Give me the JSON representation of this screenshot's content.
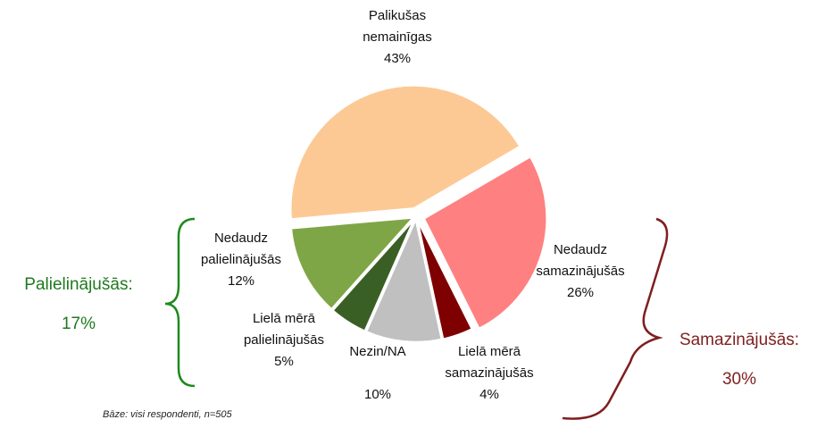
{
  "chart_data": {
    "type": "pie",
    "categories": [
      "Palikušas nemainīgas",
      "Nedaudz samazinājušās",
      "Lielā mērā samazinājušās",
      "Nezin/NA",
      "Lielā mērā palielinājušās",
      "Nedaudz palielinājušās"
    ],
    "values": [
      43,
      26,
      4,
      10,
      5,
      12
    ],
    "value_labels": [
      "43%",
      "26%",
      "4%",
      "10%",
      "5%",
      "12%"
    ],
    "colors": [
      "#fcc995",
      "#ff8080",
      "#7f0000",
      "#c0c0c0",
      "#3a5f24",
      "#7fa646"
    ],
    "groups": [
      {
        "name": "Palielinājušās:",
        "value": 17,
        "value_label": "17%",
        "color": "#1e7a1e"
      },
      {
        "name": "Samazinājušās:",
        "value": 30,
        "value_label": "30%",
        "color": "#7f1f1f"
      }
    ],
    "footnote": "Bāze: visi respondenti, n=505"
  }
}
